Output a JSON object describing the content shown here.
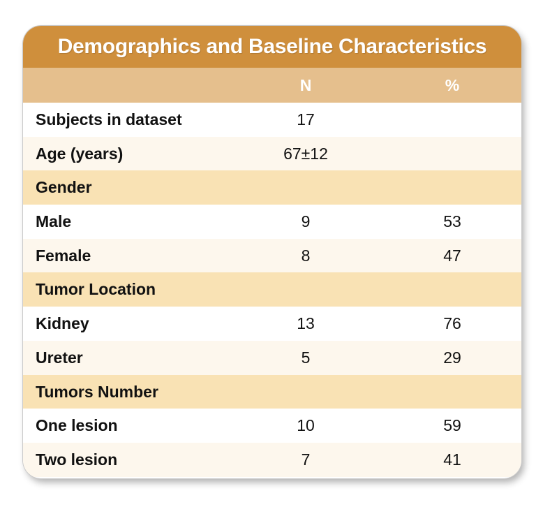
{
  "table": {
    "title": "Demographics and Baseline Characteristics",
    "headers": {
      "label": "",
      "n": "N",
      "pct": "%"
    },
    "rows": [
      {
        "label": "Subjects in dataset",
        "n": "17",
        "pct": "",
        "kind": "white"
      },
      {
        "label": "Age (years)",
        "n": "67±12",
        "pct": "",
        "kind": "cream"
      },
      {
        "label": "Gender",
        "n": "",
        "pct": "",
        "kind": "section"
      },
      {
        "label": "Male",
        "n": "9",
        "pct": "53",
        "kind": "white"
      },
      {
        "label": "Female",
        "n": "8",
        "pct": "47",
        "kind": "cream"
      },
      {
        "label": "Tumor Location",
        "n": "",
        "pct": "",
        "kind": "section"
      },
      {
        "label": "Kidney",
        "n": "13",
        "pct": "76",
        "kind": "white"
      },
      {
        "label": "Ureter",
        "n": "5",
        "pct": "29",
        "kind": "cream"
      },
      {
        "label": "Tumors Number",
        "n": "",
        "pct": "",
        "kind": "section"
      },
      {
        "label": "One lesion",
        "n": "10",
        "pct": "59",
        "kind": "white"
      },
      {
        "label": "Two lesion",
        "n": "7",
        "pct": "41",
        "kind": "cream"
      }
    ]
  },
  "colors": {
    "title_bar": "#cf8f3c",
    "header_row": "#e5bf8d",
    "section_row": "#f9e2b4",
    "alt_row": "#fdf7ed"
  }
}
